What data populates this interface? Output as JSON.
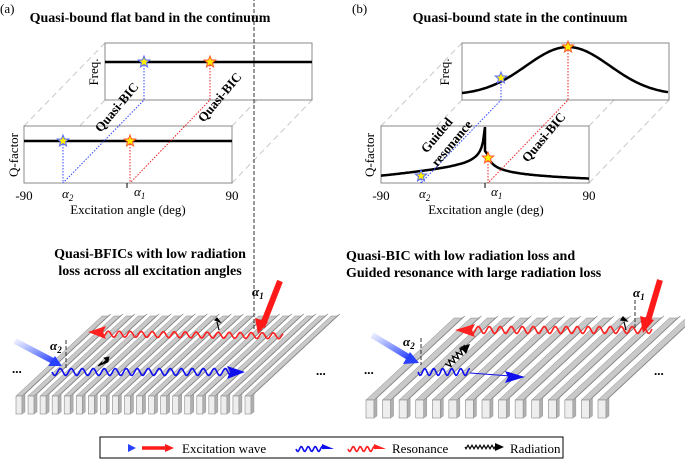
{
  "panel_a": {
    "tag": "(a)",
    "title": "Quasi-bound flat band in the continuum",
    "freq_label": "Freq.",
    "q_label": "Q-factor",
    "mode_label_1": "Quasi-BIC",
    "mode_label_2": "Quasi-BIC",
    "x_min": "-90",
    "x_max": "90",
    "alpha": "α",
    "alpha2_sub": "2",
    "alpha1_sub": "1",
    "xlabel": "Excitation angle (deg)",
    "bottom_title_1": "Quasi-BFICs with low radiation",
    "bottom_title_2": "loss across all excitation angles",
    "ellipsis": "..."
  },
  "panel_b": {
    "tag": "(b)",
    "title": "Quasi-bound state in the continuum",
    "freq_label": "Freq.",
    "q_label": "Q-factor",
    "mode_label_1a": "Guided",
    "mode_label_1b": "resonance",
    "mode_label_2": "Quasi-BIC",
    "x_min": "-90",
    "x_max": "90",
    "alpha": "α",
    "alpha2_sub": "2",
    "alpha1_sub": "1",
    "xlabel": "Excitation angle (deg)",
    "bottom_title_1": "Quasi-BIC with low radiation loss and",
    "bottom_title_2": "Guided resonance with large radiation loss",
    "ellipsis": "..."
  },
  "legend": {
    "excitation": "Excitation wave",
    "resonance": "Resonance",
    "radiation": "Radiation"
  },
  "colors": {
    "blue": "#1010ee",
    "red": "#ee1111",
    "star_fill": "#ffee00",
    "grating": "#c9c9c9"
  }
}
